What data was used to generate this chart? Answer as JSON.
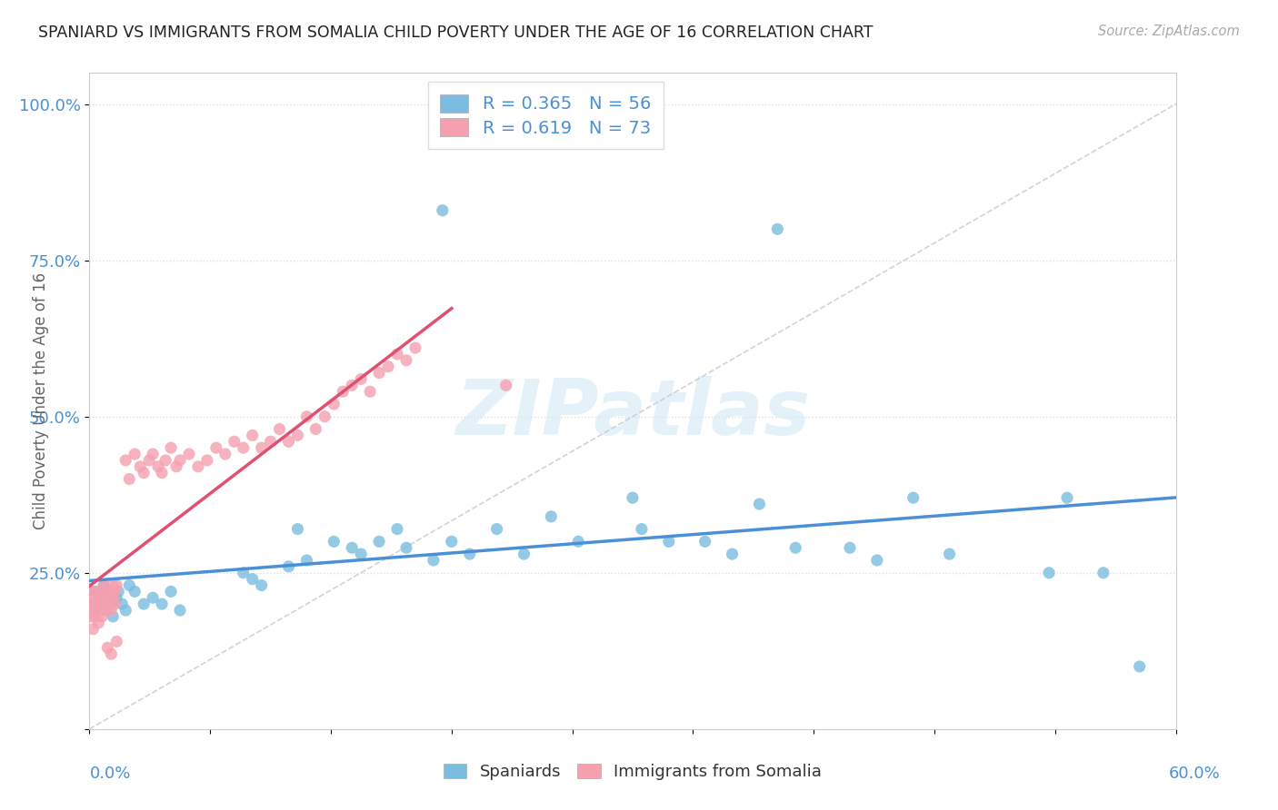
{
  "title": "SPANIARD VS IMMIGRANTS FROM SOMALIA CHILD POVERTY UNDER THE AGE OF 16 CORRELATION CHART",
  "source": "Source: ZipAtlas.com",
  "ylabel": "Child Poverty Under the Age of 16",
  "xlim": [
    0.0,
    0.6
  ],
  "ylim": [
    0.0,
    1.05
  ],
  "legend_entry1": "Spaniards",
  "legend_entry2": "Immigrants from Somalia",
  "blue_color": "#7bbde0",
  "pink_color": "#f4a0b0",
  "blue_line_color": "#4a90d9",
  "pink_line_color": "#e05070",
  "diagonal_line_color": "#c8c8c8",
  "R_blue": 0.365,
  "N_blue": 56,
  "R_pink": 0.619,
  "N_pink": 73,
  "title_color": "#222222",
  "tick_color": "#4a90d9",
  "grid_color": "#e0e0e0",
  "watermark": "ZIPatlas"
}
